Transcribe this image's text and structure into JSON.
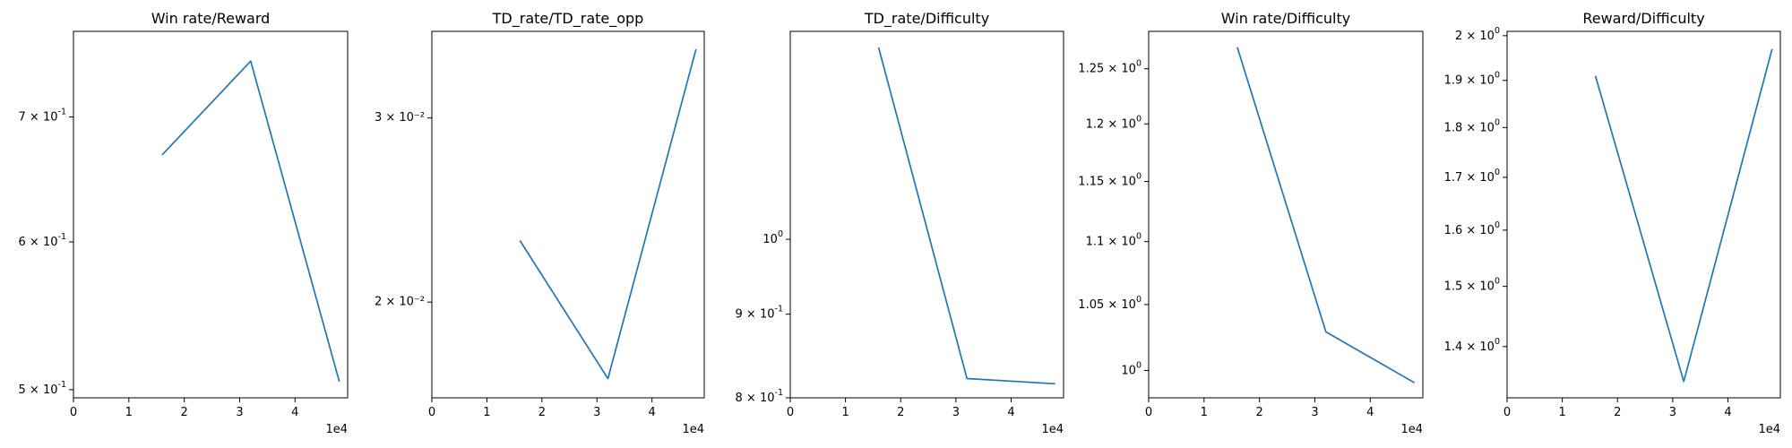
{
  "chart_data": [
    {
      "type": "line",
      "title": "Win rate/Reward",
      "x": [
        16000,
        32000,
        48000
      ],
      "y": [
        0.668,
        0.75,
        0.505
      ],
      "xlim": [
        0,
        49500
      ],
      "ylim": [
        0.495,
        0.778
      ],
      "yscale": "log",
      "x_ticks": [
        0,
        1,
        2,
        3,
        4
      ],
      "x_offset_label": "1e4",
      "y_ticks": [
        {
          "value": 0.5,
          "label": "5 × 10⁻¹"
        },
        {
          "value": 0.6,
          "label": "6 × 10⁻¹"
        },
        {
          "value": 0.7,
          "label": "7 × 10⁻¹"
        }
      ],
      "color": "#1f77b4"
    },
    {
      "type": "line",
      "title": "TD_rate/TD_rate_opp",
      "x": [
        16000,
        32000,
        48000
      ],
      "y": [
        0.0229,
        0.0169,
        0.0349
      ],
      "xlim": [
        0,
        49500
      ],
      "ylim": [
        0.0162,
        0.0363
      ],
      "yscale": "log",
      "x_ticks": [
        0,
        1,
        2,
        3,
        4
      ],
      "x_offset_label": "1e4",
      "y_ticks": [
        {
          "value": 0.02,
          "label": "2 × 10⁻²"
        },
        {
          "value": 0.03,
          "label": "3 × 10⁻²"
        }
      ],
      "color": "#1f77b4"
    },
    {
      "type": "line",
      "title": "TD_rate/Difficulty",
      "x": [
        16000,
        32000,
        48000
      ],
      "y": [
        1.31,
        0.822,
        0.816
      ],
      "xlim": [
        0,
        49500
      ],
      "ylim": [
        0.8,
        1.34
      ],
      "yscale": "log",
      "x_ticks": [
        0,
        1,
        2,
        3,
        4
      ],
      "x_offset_label": "1e4",
      "y_ticks": [
        {
          "value": 0.8,
          "label": "8 × 10⁻¹"
        },
        {
          "value": 0.9,
          "label": "9 × 10⁻¹"
        },
        {
          "value": 1.0,
          "label": "10⁰"
        }
      ],
      "color": "#1f77b4"
    },
    {
      "type": "line",
      "title": "Win rate/Difficulty",
      "x": [
        16000,
        32000,
        48000
      ],
      "y": [
        1.27,
        1.029,
        0.991
      ],
      "xlim": [
        0,
        49500
      ],
      "ylim": [
        0.98,
        1.285
      ],
      "yscale": "log",
      "x_ticks": [
        0,
        1,
        2,
        3,
        4
      ],
      "x_offset_label": "1e4",
      "y_ticks": [
        {
          "value": 1.0,
          "label": "10⁰"
        },
        {
          "value": 1.05,
          "label": "1.05 × 10⁰"
        },
        {
          "value": 1.1,
          "label": "1.1 × 10⁰"
        },
        {
          "value": 1.15,
          "label": "1.15 × 10⁰"
        },
        {
          "value": 1.2,
          "label": "1.2 × 10⁰"
        },
        {
          "value": 1.25,
          "label": "1.25 × 10⁰"
        }
      ],
      "color": "#1f77b4"
    },
    {
      "type": "line",
      "title": "Reward/Difficulty",
      "x": [
        16000,
        32000,
        48000
      ],
      "y": [
        1.91,
        1.345,
        1.97
      ],
      "xlim": [
        0,
        49500
      ],
      "ylim": [
        1.32,
        2.01
      ],
      "yscale": "log",
      "x_ticks": [
        0,
        1,
        2,
        3,
        4
      ],
      "x_offset_label": "1e4",
      "y_ticks": [
        {
          "value": 1.4,
          "label": "1.4 × 10⁰"
        },
        {
          "value": 1.5,
          "label": "1.5 × 10⁰"
        },
        {
          "value": 1.6,
          "label": "1.6 × 10⁰"
        },
        {
          "value": 1.7,
          "label": "1.7 × 10⁰"
        },
        {
          "value": 1.8,
          "label": "1.8 × 10⁰"
        },
        {
          "value": 1.9,
          "label": "1.9 × 10⁰"
        },
        {
          "value": 2.0,
          "label": "2 × 10⁰"
        }
      ],
      "color": "#1f77b4"
    }
  ]
}
